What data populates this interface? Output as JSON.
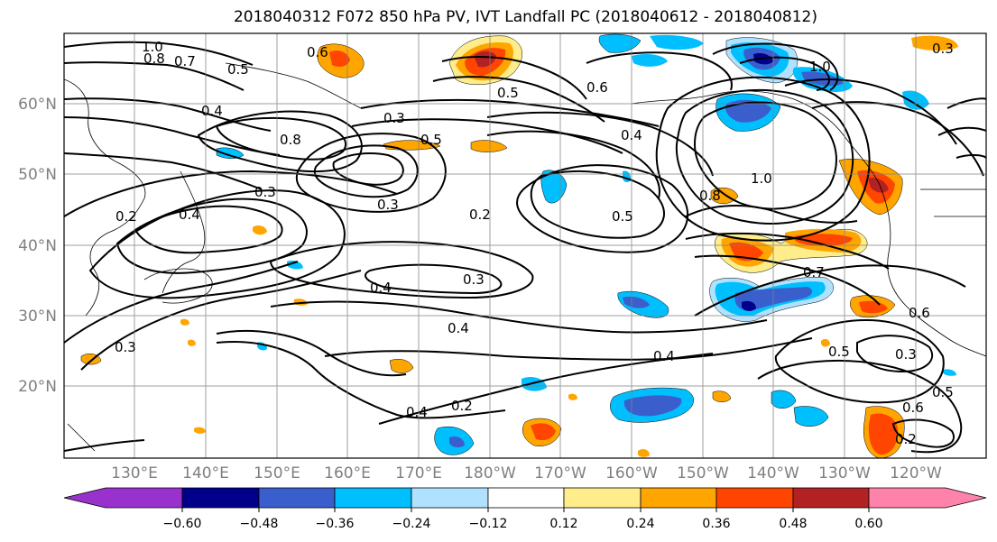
{
  "title": "2018040312 F072 850 hPa PV, IVT Landfall PC (2018040612 - 2018040812)",
  "latitude_labels": [
    "60°N",
    "50°N",
    "40°N",
    "30°N",
    "20°N"
  ],
  "longitude_labels": [
    "130°E",
    "140°E",
    "150°E",
    "160°E",
    "170°E",
    "180°W",
    "170°W",
    "160°W",
    "150°W",
    "140°W",
    "130°W",
    "120°W"
  ],
  "colorbar": {
    "ticks": [
      "−0.60",
      "−0.48",
      "−0.36",
      "−0.24",
      "−0.12",
      "0.12",
      "0.24",
      "0.36",
      "0.48",
      "0.60"
    ],
    "colors": [
      "#9932cc",
      "#00008b",
      "#3a5fcd",
      "#00bfff",
      "#b0e2ff",
      "#ffffff",
      "#ffec8b",
      "#ffa500",
      "#ff4500",
      "#b22222",
      "#ff82ab"
    ]
  },
  "contour_labels": [
    "1.0",
    "0.8",
    "0.7",
    "0.6",
    "0.5",
    "0.4",
    "0.3",
    "0.2"
  ],
  "contour_label_list": [
    "1.0",
    "0.8",
    "0.7",
    "0.6",
    "0.5",
    "0.4",
    "0.3",
    "0.2",
    "0.5",
    "0.6",
    "0.4",
    "0.3",
    "0.8",
    "0.5",
    "0.3",
    "0.2",
    "0.4",
    "0.3",
    "0.4",
    "0.3",
    "0.2",
    "0.4",
    "0.5",
    "1.0",
    "0.8",
    "1.0",
    "0.7",
    "0.5",
    "0.6",
    "0.3",
    "0.4",
    "0.2",
    "0.6",
    "0.5",
    "0.4",
    "0.3"
  ]
}
